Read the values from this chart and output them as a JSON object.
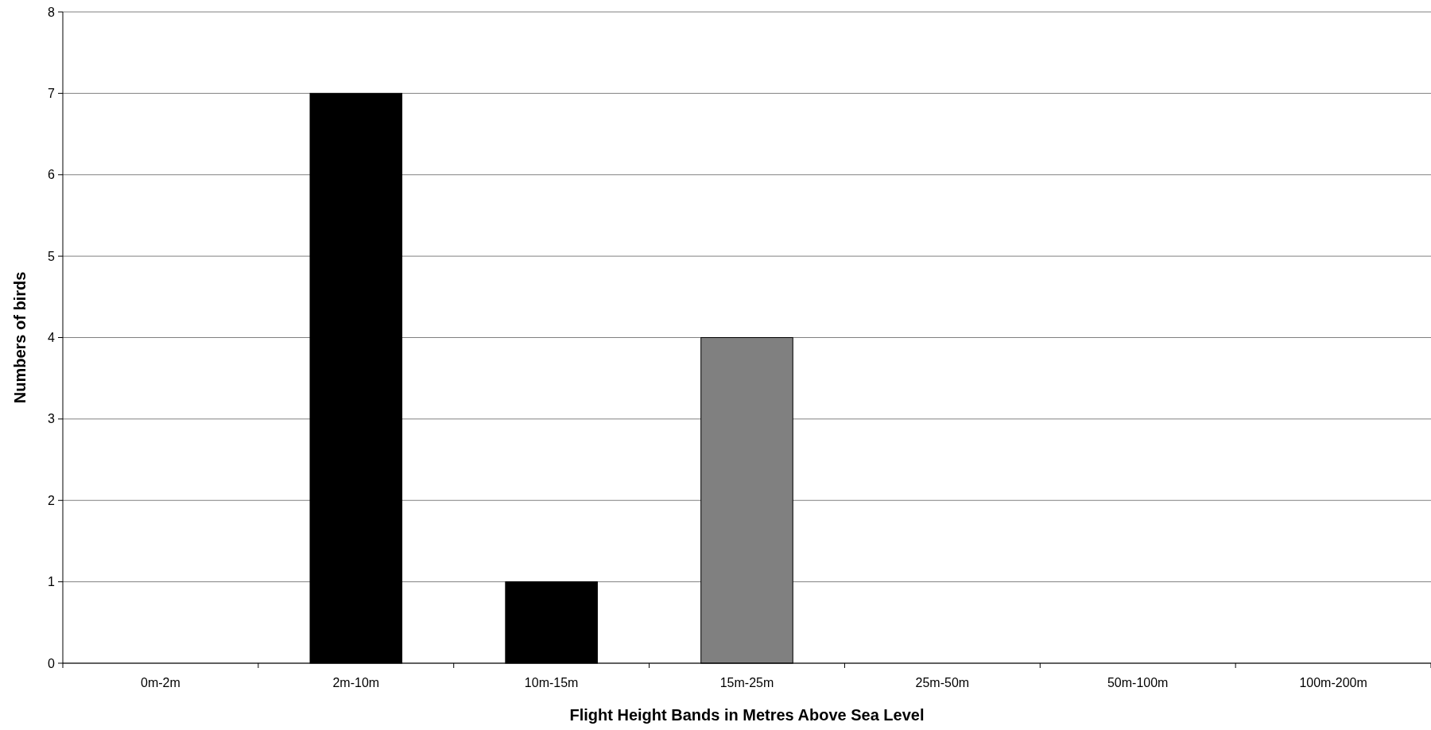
{
  "chart_data": {
    "type": "bar",
    "xlabel": "Flight Height Bands in Metres Above Sea Level",
    "ylabel": "Numbers of birds",
    "categories": [
      "0m-2m",
      "2m-10m",
      "10m-15m",
      "15m-25m",
      "25m-50m",
      "50m-100m",
      "100m-200m"
    ],
    "values": [
      0,
      7,
      1,
      4,
      0,
      0,
      0
    ],
    "colors": [
      "#000000",
      "#000000",
      "#000000",
      "#808080",
      "#000000",
      "#000000",
      "#000000"
    ],
    "ylim": [
      0,
      8
    ],
    "yticks": [
      0,
      1,
      2,
      3,
      4,
      5,
      6,
      7,
      8
    ],
    "grid": "y"
  }
}
